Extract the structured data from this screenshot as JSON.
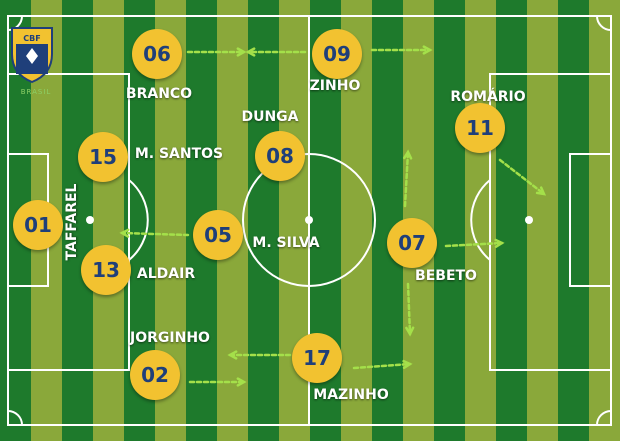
{
  "team": {
    "crest_text": "CBF",
    "crest_caption": "BRASIL",
    "colors": {
      "yellow": "#f2c230",
      "blue": "#1f3f7a",
      "green_dark": "#1e7a2c",
      "green_light": "#8aa83a",
      "arrow": "#a4e04a"
    }
  },
  "players": [
    {
      "id": "p06",
      "number": "06",
      "name": "BRANCO"
    },
    {
      "id": "p09",
      "number": "09",
      "name": "ZINHO"
    },
    {
      "id": "p11",
      "number": "11",
      "name": "ROMÁRIO"
    },
    {
      "id": "p08",
      "number": "08",
      "name": "DUNGA"
    },
    {
      "id": "p15",
      "number": "15",
      "name": "M. SANTOS"
    },
    {
      "id": "p01",
      "number": "01",
      "name": "TAFFAREL"
    },
    {
      "id": "p05",
      "number": "05",
      "name": "M. SILVA"
    },
    {
      "id": "p07",
      "number": "07",
      "name": "BEBETO"
    },
    {
      "id": "p13",
      "number": "13",
      "name": "ALDAIR"
    },
    {
      "id": "p02",
      "number": "02",
      "name": "JORGINHO"
    },
    {
      "id": "p17",
      "number": "17",
      "name": "MAZINHO"
    }
  ]
}
